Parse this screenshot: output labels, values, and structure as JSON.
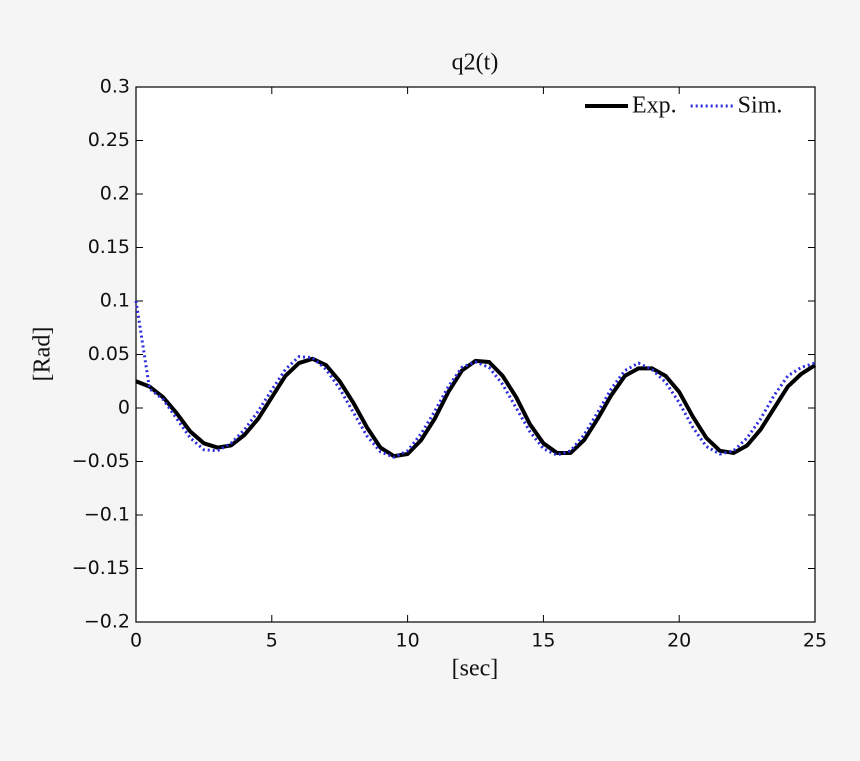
{
  "chart_data": {
    "type": "line",
    "title": "q2(t)",
    "xlabel": "[sec]",
    "ylabel": "[Rad]",
    "x": [
      0,
      0.5,
      1,
      1.5,
      2,
      2.5,
      3,
      3.5,
      4,
      4.5,
      5,
      5.5,
      6,
      6.5,
      7,
      7.5,
      8,
      8.5,
      9,
      9.5,
      10,
      10.5,
      11,
      11.5,
      12,
      12.5,
      13,
      13.5,
      14,
      14.5,
      15,
      15.5,
      16,
      16.5,
      17,
      17.5,
      18,
      18.5,
      19,
      19.5,
      20,
      20.5,
      21,
      21.5,
      22,
      22.5,
      23,
      23.5,
      24,
      24.5,
      25
    ],
    "series": [
      {
        "name": "Exp.",
        "color": "#000000",
        "values": [
          0.025,
          0.02,
          0.01,
          -0.005,
          -0.022,
          -0.033,
          -0.037,
          -0.035,
          -0.025,
          -0.01,
          0.01,
          0.03,
          0.042,
          0.046,
          0.04,
          0.025,
          0.005,
          -0.018,
          -0.037,
          -0.045,
          -0.043,
          -0.03,
          -0.01,
          0.015,
          0.035,
          0.044,
          0.043,
          0.03,
          0.01,
          -0.015,
          -0.033,
          -0.042,
          -0.042,
          -0.03,
          -0.01,
          0.012,
          0.03,
          0.037,
          0.037,
          0.03,
          0.015,
          -0.008,
          -0.028,
          -0.04,
          -0.042,
          -0.035,
          -0.02,
          0,
          0.02,
          0.032,
          0.04
        ]
      },
      {
        "name": "Sim.",
        "color": "#2b2be0",
        "values": [
          0.1,
          0.018,
          0.008,
          -0.01,
          -0.028,
          -0.039,
          -0.04,
          -0.033,
          -0.02,
          -0.003,
          0.017,
          0.036,
          0.048,
          0.047,
          0.036,
          0.018,
          -0.004,
          -0.026,
          -0.041,
          -0.046,
          -0.04,
          -0.024,
          -0.003,
          0.02,
          0.038,
          0.043,
          0.038,
          0.022,
          0,
          -0.022,
          -0.038,
          -0.044,
          -0.04,
          -0.025,
          -0.004,
          0.018,
          0.035,
          0.042,
          0.036,
          0.024,
          0.005,
          -0.018,
          -0.036,
          -0.043,
          -0.04,
          -0.028,
          -0.01,
          0.012,
          0.03,
          0.038,
          0.042
        ]
      }
    ],
    "xlim": [
      0,
      25
    ],
    "xticks": [
      0,
      5,
      10,
      15,
      20,
      25
    ],
    "ylim": [
      -0.2,
      0.3
    ],
    "yticks": [
      {
        "value": -0.2,
        "label": "−0.2"
      },
      {
        "value": -0.15,
        "label": "−0.15"
      },
      {
        "value": -0.1,
        "label": "−0.1"
      },
      {
        "value": -0.05,
        "label": "−0.05"
      },
      0,
      0.05,
      0.1,
      0.15,
      0.2,
      0.25,
      0.3
    ],
    "grid": false,
    "legend": "northeast"
  }
}
